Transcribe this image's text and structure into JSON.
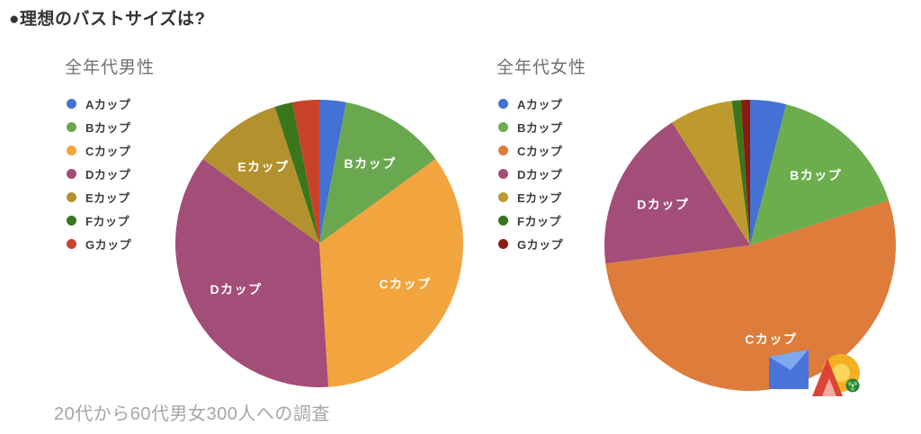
{
  "page": {
    "title": "●理想のバストサイズは?",
    "caption": "20代から60代男女300人への調査"
  },
  "chart_data": [
    {
      "type": "pie",
      "title": "全年代男性",
      "unit": "percent",
      "legend_position": "left",
      "start_angle_deg": 0,
      "categories": [
        "Aカップ",
        "Bカップ",
        "Cカップ",
        "Dカップ",
        "Eカップ",
        "Fカップ",
        "Gカップ"
      ],
      "values": [
        3,
        12,
        34,
        36,
        10,
        2,
        3
      ],
      "colors": [
        "#4472D4",
        "#6AA84F",
        "#F2A43E",
        "#A34D79",
        "#B3912F",
        "#3A761D",
        "#C7432C"
      ],
      "labels_on_pie": [
        "Bカップ",
        "Cカップ",
        "Dカップ",
        "Eカップ"
      ]
    },
    {
      "type": "pie",
      "title": "全年代女性",
      "unit": "percent",
      "legend_position": "left",
      "start_angle_deg": 0,
      "categories": [
        "Aカップ",
        "Bカップ",
        "Cカップ",
        "Dカップ",
        "Eカップ",
        "Fカップ",
        "Gカップ"
      ],
      "values": [
        4,
        16,
        53,
        18,
        7,
        1,
        1
      ],
      "colors": [
        "#4472D4",
        "#6CAE4E",
        "#DE7C3B",
        "#A34D79",
        "#BE9A2E",
        "#3A761D",
        "#8B1B10"
      ],
      "labels_on_pie": [
        "Bカップ",
        "Cカップ",
        "Dカップ"
      ]
    }
  ],
  "watermark": {
    "blue": "#4A73D9",
    "blue_light": "#7FA8EF",
    "red": "#DB4437",
    "pink": "#F6A9A2",
    "yellow": "#F3B122",
    "yellow_light": "#F9D55C",
    "green": "#2E7D32",
    "green_light": "#66BB6A"
  }
}
